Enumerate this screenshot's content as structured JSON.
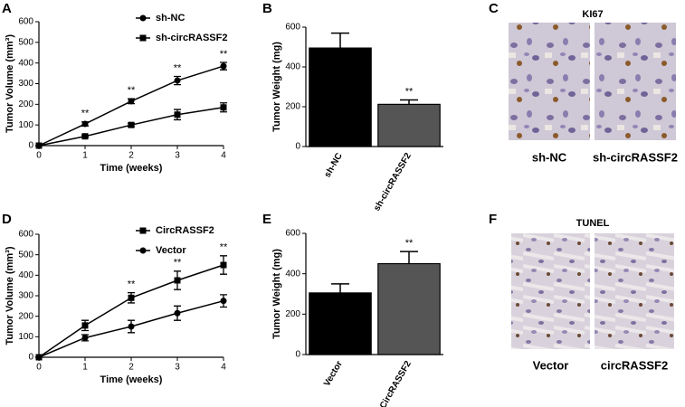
{
  "chart_data": [
    {
      "type": "line",
      "panel_label": "A",
      "xlabel": "Time (weeks)",
      "ylabel": "Tumor Volume (mm³)",
      "x": [
        0,
        1,
        2,
        3,
        4
      ],
      "xlim": [
        0,
        4
      ],
      "xticks": [
        0,
        1,
        2,
        3,
        4
      ],
      "ylim": [
        0,
        600
      ],
      "yticks": [
        0,
        100,
        200,
        300,
        400,
        500,
        600
      ],
      "legend": "upper center",
      "series": [
        {
          "name": "sh-NC",
          "color": "#000000",
          "marker": "circle",
          "values": [
            0,
            105,
            215,
            315,
            385
          ],
          "errors": [
            0,
            10,
            12,
            20,
            18
          ]
        },
        {
          "name": "sh-circRASSF2",
          "color": "#000000",
          "marker": "square",
          "values": [
            0,
            45,
            100,
            150,
            185
          ],
          "errors": [
            0,
            5,
            8,
            25,
            22
          ]
        }
      ],
      "annotations": [
        null,
        "**",
        "**",
        "**",
        "**"
      ]
    },
    {
      "type": "bar",
      "panel_label": "B",
      "ylabel": "Tumor Weight (mg)",
      "categories": [
        "sh-NC",
        "sh-circRASSF2"
      ],
      "values": [
        495,
        212
      ],
      "errors": [
        75,
        22
      ],
      "colors": [
        "#000000",
        "#555555"
      ],
      "ylim": [
        0,
        600
      ],
      "yticks": [
        0,
        200,
        400,
        600
      ],
      "annotations": [
        null,
        "**"
      ]
    },
    {
      "type": "line",
      "panel_label": "D",
      "xlabel": "Time (weeks)",
      "ylabel": "Tumor Volume (mm³)",
      "x": [
        0,
        1,
        2,
        3,
        4
      ],
      "xlim": [
        0,
        4
      ],
      "xticks": [
        0,
        1,
        2,
        3,
        4
      ],
      "ylim": [
        0,
        600
      ],
      "yticks": [
        0,
        100,
        200,
        300,
        400,
        500,
        600
      ],
      "legend": "upper center",
      "series": [
        {
          "name": "CircRASSF2",
          "color": "#000000",
          "marker": "square",
          "values": [
            0,
            155,
            290,
            375,
            450
          ],
          "errors": [
            0,
            25,
            25,
            45,
            45
          ]
        },
        {
          "name": "Vector",
          "color": "#000000",
          "marker": "circle",
          "values": [
            0,
            95,
            150,
            215,
            275
          ],
          "errors": [
            0,
            15,
            30,
            35,
            30
          ]
        }
      ],
      "annotations": [
        null,
        null,
        "**",
        "**",
        "**"
      ]
    },
    {
      "type": "bar",
      "panel_label": "E",
      "ylabel": "Tumor Weight (mg)",
      "categories": [
        "Vector",
        "CircRASSF2"
      ],
      "values": [
        305,
        450
      ],
      "errors": [
        45,
        60
      ],
      "colors": [
        "#000000",
        "#555555"
      ],
      "ylim": [
        0,
        600
      ],
      "yticks": [
        0,
        200,
        400,
        600
      ],
      "annotations": [
        null,
        "**"
      ]
    }
  ],
  "image_panels": [
    {
      "panel_label": "C",
      "title": "KI67",
      "labels": [
        "sh-NC",
        "sh-circRASSF2"
      ]
    },
    {
      "panel_label": "F",
      "title": "TUNEL",
      "labels": [
        "Vector",
        "circRASSF2"
      ]
    }
  ]
}
